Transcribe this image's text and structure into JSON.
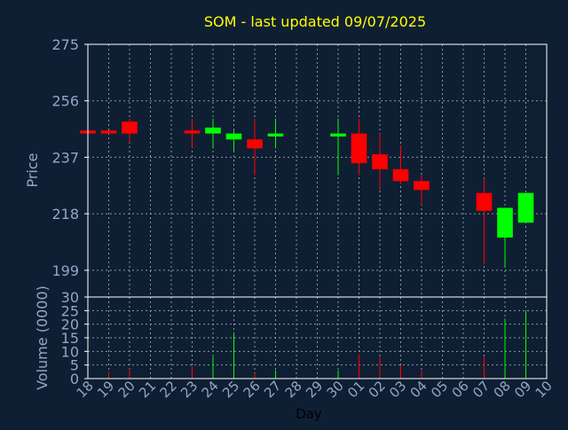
{
  "theme": {
    "background": "#0f1f33",
    "grid_color": "#8c97a6",
    "axis_color": "#ffffff",
    "title_color": "#ffff00",
    "label_color": "#8fa8c8",
    "up_color": "#00ff00",
    "down_color": "#ff0000"
  },
  "chart_data": {
    "type": "candlestick",
    "title": "SOM - last updated 09/07/2025",
    "xlabel": "Day",
    "price_panel": {
      "ylabel": "Price",
      "ylim": [
        190,
        275
      ],
      "yticks": [
        199,
        218,
        237,
        256,
        275
      ],
      "grid": true
    },
    "volume_panel": {
      "ylabel": "Volume (0000)",
      "ylim": [
        0,
        30
      ],
      "yticks": [
        0,
        5,
        10,
        15,
        20,
        25,
        30
      ],
      "grid": true
    },
    "x_ticks": [
      "18",
      "19",
      "20",
      "21",
      "22",
      "23",
      "24",
      "25",
      "26",
      "27",
      "28",
      "29",
      "30",
      "01",
      "02",
      "03",
      "04",
      "05",
      "06",
      "07",
      "08",
      "09",
      "10"
    ],
    "candles": [
      {
        "day": "18",
        "open": 246,
        "high": 246,
        "low": 245,
        "close": 245,
        "volume": 0.3
      },
      {
        "day": "19",
        "open": 246,
        "high": 246,
        "low": 245,
        "close": 245,
        "volume": 2.5
      },
      {
        "day": "20",
        "open": 249,
        "high": 250,
        "low": 242,
        "close": 245,
        "volume": 3.5
      },
      {
        "day": "23",
        "open": 246,
        "high": 250,
        "low": 240,
        "close": 245,
        "volume": 4.5
      },
      {
        "day": "24",
        "open": 245,
        "high": 250,
        "low": 240,
        "close": 247,
        "volume": 8
      },
      {
        "day": "25",
        "open": 243,
        "high": 246,
        "low": 239,
        "close": 245,
        "volume": 17
      },
      {
        "day": "26",
        "open": 243,
        "high": 250,
        "low": 231,
        "close": 240,
        "volume": 2
      },
      {
        "day": "27",
        "open": 244,
        "high": 250,
        "low": 240,
        "close": 245,
        "volume": 3
      },
      {
        "day": "30",
        "open": 244,
        "high": 250,
        "low": 231,
        "close": 245,
        "volume": 3
      },
      {
        "day": "01",
        "open": 245,
        "high": 250,
        "low": 231,
        "close": 235,
        "volume": 9
      },
      {
        "day": "02",
        "open": 238,
        "high": 245,
        "low": 226,
        "close": 233,
        "volume": 8
      },
      {
        "day": "03",
        "open": 233,
        "high": 241,
        "low": 228,
        "close": 229,
        "volume": 5
      },
      {
        "day": "04",
        "open": 229,
        "high": 231,
        "low": 221,
        "close": 226,
        "volume": 3
      },
      {
        "day": "07",
        "open": 225,
        "high": 230,
        "low": 201,
        "close": 219,
        "volume": 8
      },
      {
        "day": "08",
        "open": 210,
        "high": 220,
        "low": 200,
        "close": 220,
        "volume": 22
      },
      {
        "day": "09",
        "open": 215,
        "high": 225,
        "low": 215,
        "close": 225,
        "volume": 25
      }
    ]
  }
}
